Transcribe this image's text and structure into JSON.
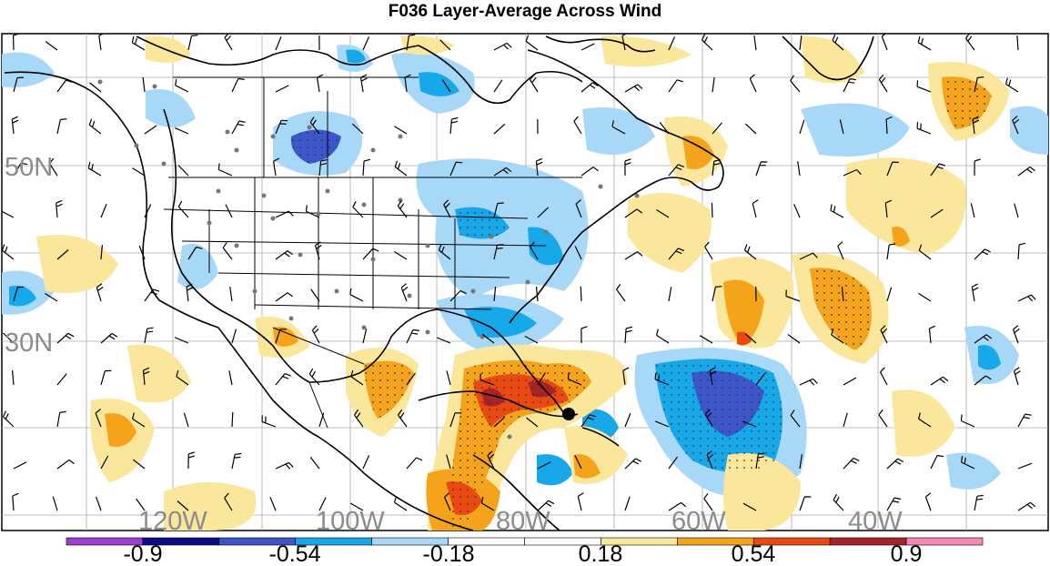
{
  "title": "F036 Layer-Average Across Wind",
  "lat_labels": [
    "50N",
    "30N"
  ],
  "lon_labels": [
    "120W",
    "100W",
    "80W",
    "60W",
    "40W"
  ],
  "colorbar": {
    "tick_labels": [
      "-0.9",
      "-0.54",
      "-0.18",
      "0.18",
      "0.54",
      "0.9"
    ],
    "colors": [
      "#9a3fd0",
      "#0d0d8c",
      "#3c55c8",
      "#17a8ea",
      "#a7d8f7",
      "#ffffff",
      "#ffffff",
      "#fbe79c",
      "#f5a31a",
      "#ea4a12",
      "#a82323",
      "#f487b4"
    ]
  }
}
